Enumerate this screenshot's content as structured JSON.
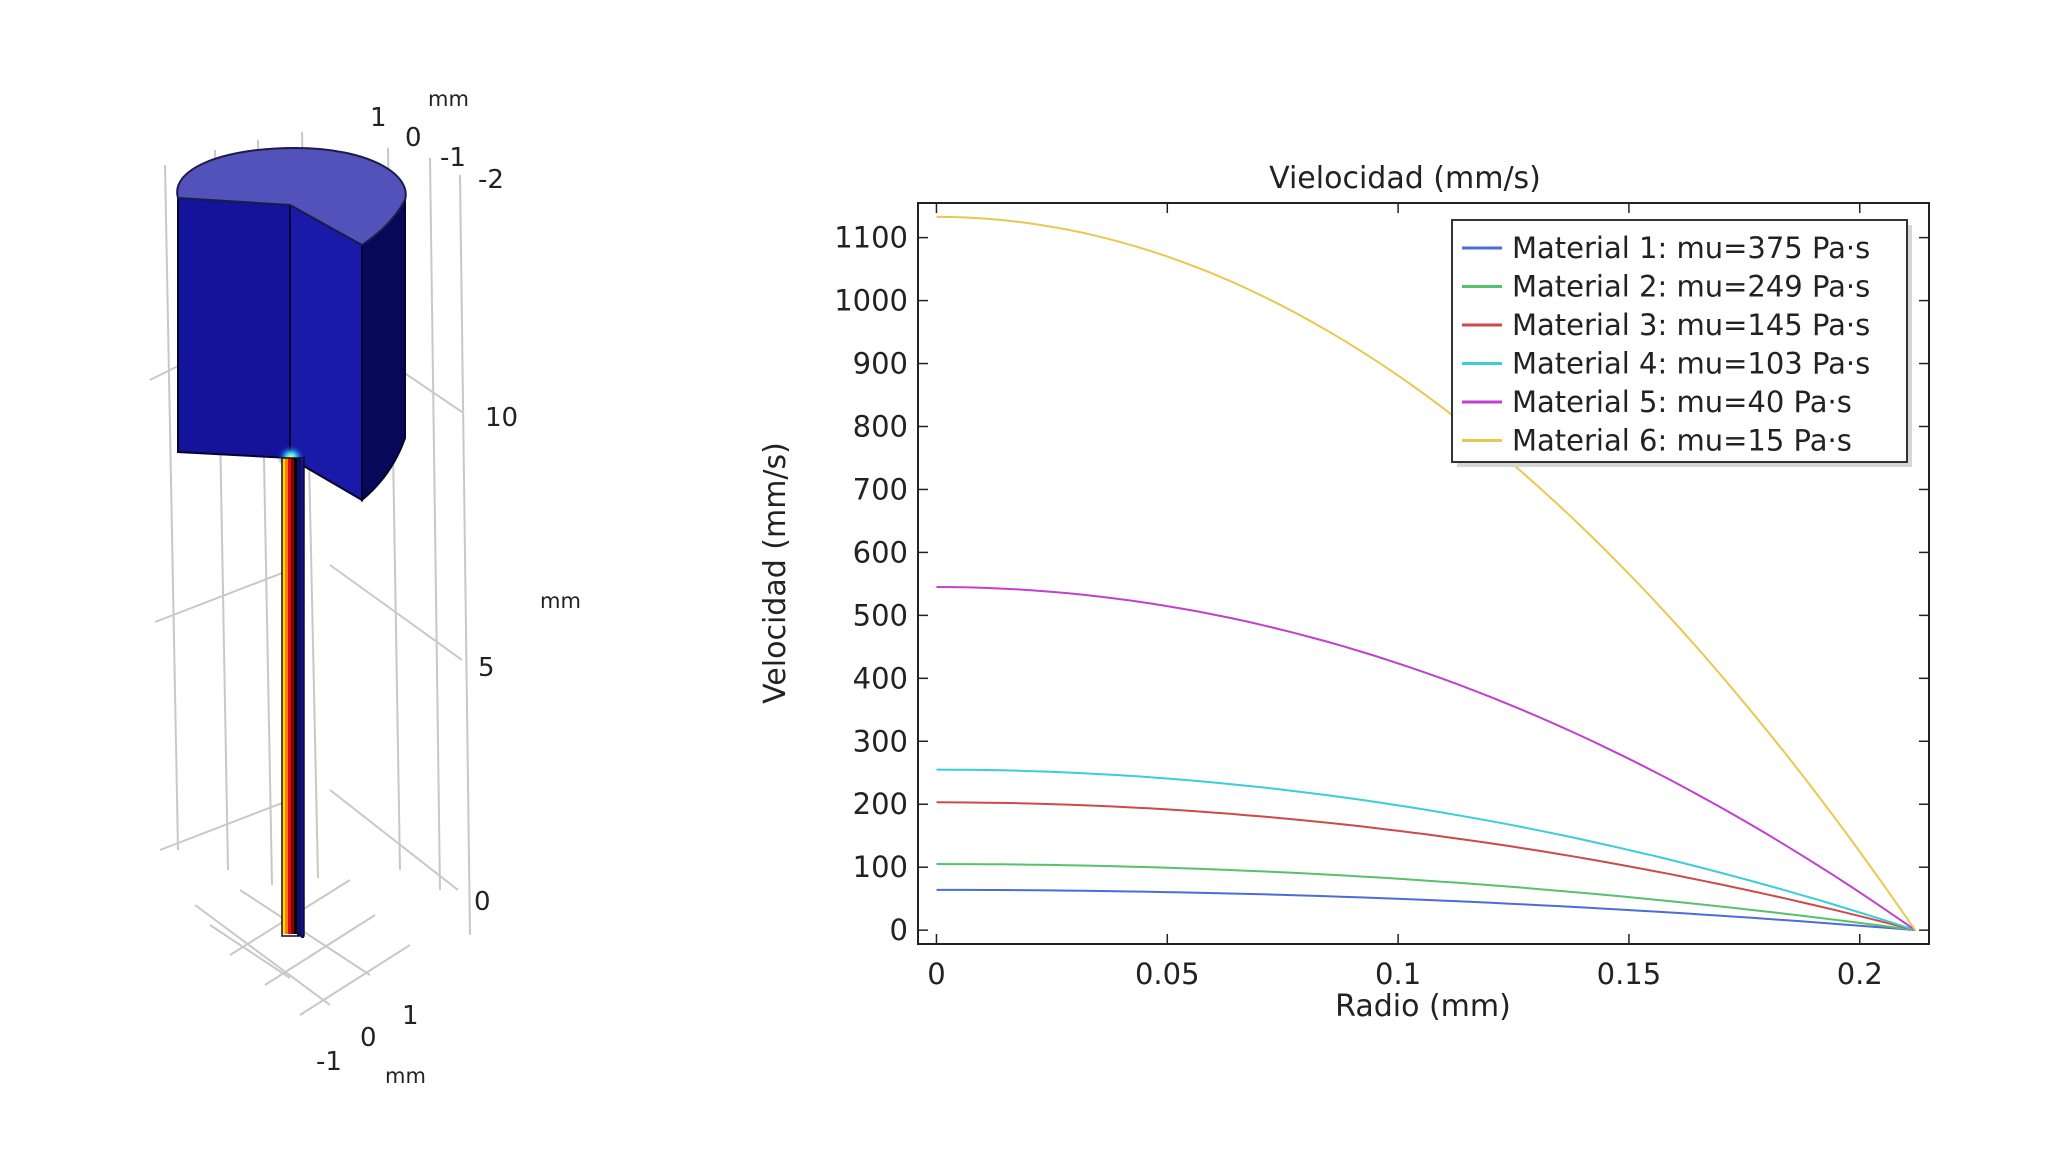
{
  "model_3d": {
    "top_axis_ticks": [
      "1",
      "0",
      "-1",
      "-2"
    ],
    "top_axis_unit": "mm",
    "vertical_axis_ticks": [
      "10",
      "5",
      "0"
    ],
    "vertical_axis_unit": "mm",
    "bottom_axis_ticks": [
      "-1",
      "0",
      "1"
    ],
    "bottom_axis_unit": "mm",
    "colors": {
      "reservoir": "#14149a",
      "reservoir_top": "#5252ba",
      "reservoir_side": "#08085a",
      "grid": "#c8c8c8"
    }
  },
  "chart_data": {
    "type": "line",
    "title": "Vielocidad (mm/s)",
    "xlabel": "Radio  (mm)",
    "ylabel": "Velocidad (mm/s)",
    "xlim": [
      -0.004,
      0.215
    ],
    "ylim": [
      -22,
      1155
    ],
    "xticks": [
      0,
      0.05,
      0.1,
      0.15,
      0.2
    ],
    "xtick_labels": [
      "0",
      "0.05",
      "0.1",
      "0.15",
      "0.2"
    ],
    "yticks": [
      0,
      100,
      200,
      300,
      400,
      500,
      600,
      700,
      800,
      900,
      1000,
      1100
    ],
    "ytick_labels": [
      "0",
      "100",
      "200",
      "300",
      "400",
      "500",
      "600",
      "700",
      "800",
      "900",
      "1000",
      "1100"
    ],
    "radius": 0.212,
    "legend_position": "top-right",
    "series": [
      {
        "name": "Material 1: mu=375 Pa·s",
        "color": "#4b6cd9",
        "max": 64,
        "profile": "parabolic"
      },
      {
        "name": "Material 2: mu=249 Pa·s",
        "color": "#56c26b",
        "max": 105,
        "profile": "parabolic"
      },
      {
        "name": "Material 3: mu=145 Pa·s",
        "color": "#cc4a4a",
        "max": 203,
        "profile": "parabolic"
      },
      {
        "name": "Material 4: mu=103 Pa·s",
        "color": "#38cfd6",
        "max": 255,
        "profile": "parabolic"
      },
      {
        "name": "Material 5: mu=40 Pa·s",
        "color": "#c23fcf",
        "max": 545,
        "profile": "parabolic"
      },
      {
        "name": "Material 6: mu=15 Pa·s",
        "color": "#e8c850",
        "max": 1133,
        "profile": "parabolic"
      }
    ]
  }
}
